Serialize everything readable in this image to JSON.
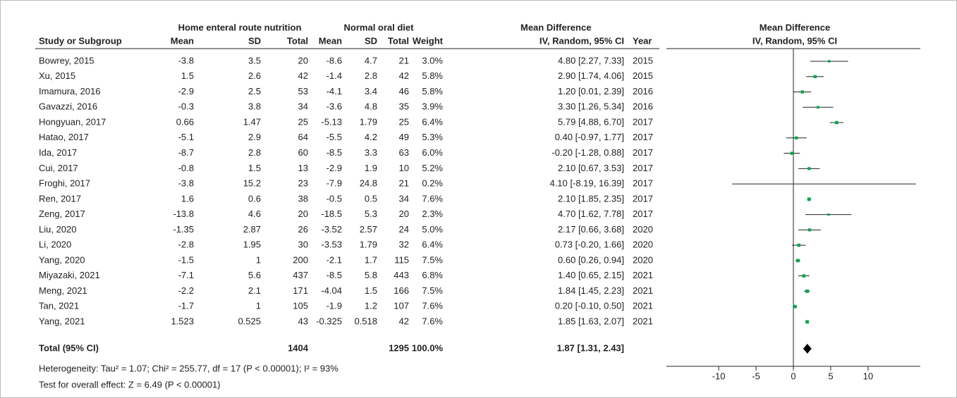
{
  "table": {
    "group_headers": [
      "Home enteral route nutrition",
      "Normal oral diet",
      "Mean Difference"
    ],
    "columns": [
      "Study or Subgroup",
      "Mean",
      "SD",
      "Total",
      "Mean",
      "SD",
      "Total",
      "Weight",
      "IV, Random, 95% CI",
      "Year"
    ],
    "rows": [
      [
        "Bowrey, 2015",
        "-3.8",
        "3.5",
        "20",
        "-8.6",
        "4.7",
        "21"
      ],
      [
        "Xu, 2015",
        "1.5",
        "2.6",
        "42",
        "-1.4",
        "2.8",
        "42"
      ],
      [
        "Imamura, 2016",
        "-2.9",
        "2.5",
        "53",
        "-4.1",
        "3.4",
        "46"
      ],
      [
        "Gavazzi, 2016",
        "-0.3",
        "3.8",
        "34",
        "-3.6",
        "4.8",
        "35"
      ],
      [
        "Hongyuan, 2017",
        "0.66",
        "1.47",
        "25",
        "-5.13",
        "1.79",
        "25"
      ],
      [
        "Hatao, 2017",
        "-5.1",
        "2.9",
        "64",
        "-5.5",
        "4.2",
        "49"
      ],
      [
        "Ida, 2017",
        "-8.7",
        "2.8",
        "60",
        "-8.5",
        "3.3",
        "63"
      ],
      [
        "Cui, 2017",
        "-0.8",
        "1.5",
        "13",
        "-2.9",
        "1.9",
        "10"
      ],
      [
        "Froghi, 2017",
        "-3.8",
        "15.2",
        "23",
        "-7.9",
        "24.8",
        "21"
      ],
      [
        "Ren, 2017",
        "1.6",
        "0.6",
        "38",
        "-0.5",
        "0.5",
        "34"
      ],
      [
        "Zeng, 2017",
        "-13.8",
        "4.6",
        "20",
        "-18.5",
        "5.3",
        "20"
      ],
      [
        "Liu, 2020",
        "-1.35",
        "2.87",
        "26",
        "-3.52",
        "2.57",
        "24"
      ],
      [
        "Li, 2020",
        "-2.8",
        "1.95",
        "30",
        "-3.53",
        "1.79",
        "32"
      ],
      [
        "Yang, 2020",
        "-1.5",
        "1",
        "200",
        "-2.1",
        "1.7",
        "115"
      ],
      [
        "Miyazaki, 2021",
        "-7.1",
        "5.6",
        "437",
        "-8.5",
        "5.8",
        "443"
      ],
      [
        "Meng, 2021",
        "-2.2",
        "2.1",
        "171",
        "-4.04",
        "1.5",
        "166"
      ],
      [
        "Tan, 2021",
        "-1.7",
        "1",
        "105",
        "-1.9",
        "1.2",
        "107"
      ],
      [
        "Yang, 2021",
        "1.523",
        "0.525",
        "43",
        "-0.325",
        "0.518",
        "42"
      ]
    ],
    "total_row": [
      "Total (95% CI)",
      "1404",
      "1295"
    ],
    "heterogeneity": "Heterogeneity: Tau² = 1.07; Chi² = 255.77, df = 17 (P < 0.00001); I² = 93%",
    "overall_effect": "Test for overall effect: Z = 6.49 (P < 0.00001)"
  },
  "chart_data": {
    "type": "forest",
    "title": "Mean Difference",
    "subtitle": "IV, Random, 95% CI",
    "values": [
      4.8,
      2.9,
      1.2,
      3.3,
      5.79,
      0.4,
      -0.2,
      2.1,
      4.1,
      2.1,
      4.7,
      2.17,
      0.73,
      0.6,
      1.4,
      1.84,
      0.2,
      1.85
    ],
    "lower": [
      2.27,
      1.74,
      0.01,
      1.26,
      4.88,
      -0.97,
      -1.28,
      0.67,
      -8.19,
      1.85,
      1.62,
      0.66,
      -0.2,
      0.26,
      0.65,
      1.45,
      -0.1,
      1.63
    ],
    "upper": [
      7.33,
      4.06,
      2.39,
      5.34,
      6.7,
      1.77,
      0.88,
      3.53,
      16.39,
      2.35,
      7.78,
      3.68,
      1.66,
      0.94,
      2.15,
      2.23,
      0.5,
      2.07
    ],
    "value_labels": [
      "4.80 [2.27, 7.33]",
      "2.90 [1.74, 4.06]",
      "1.20 [0.01, 2.39]",
      "3.30 [1.26, 5.34]",
      "5.79 [4.88, 6.70]",
      "0.40 [-0.97, 1.77]",
      "-0.20 [-1.28, 0.88]",
      "2.10 [0.67, 3.53]",
      "4.10 [-8.19, 16.39]",
      "2.10 [1.85, 2.35]",
      "4.70 [1.62, 7.78]",
      "2.17 [0.66, 3.68]",
      "0.73 [-0.20, 1.66]",
      "0.60 [0.26, 0.94]",
      "1.40 [0.65, 2.15]",
      "1.84 [1.45, 2.23]",
      "0.20 [-0.10, 0.50]",
      "1.85 [1.63, 2.07]"
    ],
    "weights": [
      3.0,
      5.8,
      5.8,
      3.9,
      6.4,
      5.3,
      6.0,
      5.2,
      0.2,
      7.6,
      2.3,
      5.0,
      6.4,
      7.5,
      6.8,
      7.5,
      7.6,
      7.6
    ],
    "weight_labels": [
      "3.0%",
      "5.8%",
      "5.8%",
      "3.9%",
      "6.4%",
      "5.3%",
      "6.0%",
      "5.2%",
      "0.2%",
      "7.6%",
      "2.3%",
      "5.0%",
      "6.4%",
      "7.5%",
      "6.8%",
      "7.5%",
      "7.6%",
      "7.6%"
    ],
    "years": [
      2015,
      2015,
      2016,
      2016,
      2017,
      2017,
      2017,
      2017,
      2017,
      2017,
      2017,
      2020,
      2020,
      2020,
      2021,
      2021,
      2021,
      2021
    ],
    "total": {
      "value": 1.87,
      "lower": 1.31,
      "upper": 2.43,
      "value_label": "1.87 [1.31, 2.43]",
      "weight_label": "100.0%"
    },
    "color": "#00a651",
    "xlim": [
      -17,
      17
    ],
    "xticks": [
      -10,
      -5,
      0,
      5,
      10
    ]
  }
}
